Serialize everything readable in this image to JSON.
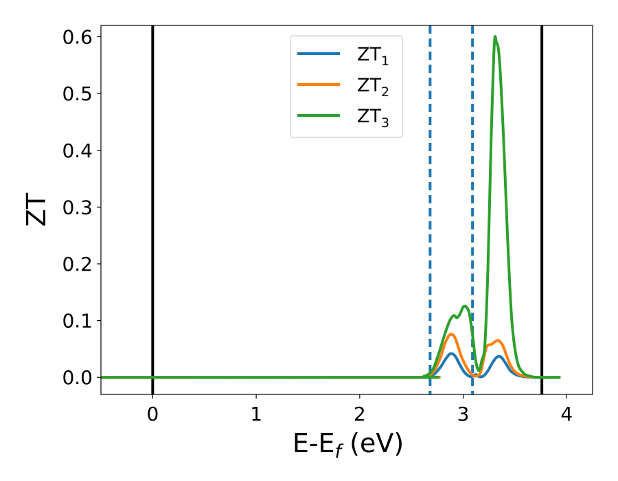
{
  "chart_data": {
    "type": "line",
    "xlabel": {
      "main": "E-E",
      "sub": "f",
      "tail": " (eV)"
    },
    "ylabel": "ZT",
    "xlim": [
      -0.5,
      4.25
    ],
    "ylim": [
      -0.03,
      0.62
    ],
    "x_ticks": [
      {
        "value": 0,
        "label": "0"
      },
      {
        "value": 1,
        "label": "1"
      },
      {
        "value": 2,
        "label": "2"
      },
      {
        "value": 3,
        "label": "3"
      },
      {
        "value": 4,
        "label": "4"
      }
    ],
    "y_ticks": [
      {
        "value": 0.0,
        "label": "0.0"
      },
      {
        "value": 0.1,
        "label": "0.1"
      },
      {
        "value": 0.2,
        "label": "0.2"
      },
      {
        "value": 0.3,
        "label": "0.3"
      },
      {
        "value": 0.4,
        "label": "0.4"
      },
      {
        "value": 0.5,
        "label": "0.5"
      },
      {
        "value": 0.6,
        "label": "0.6"
      }
    ],
    "grid": false,
    "legend_position": "top-center",
    "vertical_lines": [
      {
        "x": 0.0,
        "style": "solid",
        "color": "#000000"
      },
      {
        "x": 3.76,
        "style": "solid",
        "color": "#000000"
      },
      {
        "x": 2.68,
        "style": "dashed",
        "color": "#1f77b4"
      },
      {
        "x": 3.09,
        "style": "dashed",
        "color": "#1f77b4"
      }
    ],
    "series": [
      {
        "name": "ZT",
        "sub": "1",
        "color": "#1f77b4",
        "x": [
          -0.5,
          2.5,
          2.65,
          2.72,
          2.78,
          2.84,
          2.88,
          2.92,
          2.96,
          3.0,
          3.04,
          3.08,
          3.12,
          3.16,
          3.2,
          3.24,
          3.28,
          3.32,
          3.35,
          3.38,
          3.42,
          3.46,
          3.52,
          3.6,
          3.7,
          3.94
        ],
        "y": [
          0.0,
          0.0,
          0.001,
          0.006,
          0.018,
          0.035,
          0.042,
          0.038,
          0.025,
          0.012,
          0.004,
          0.001,
          0.005,
          0.001,
          0.003,
          0.012,
          0.025,
          0.035,
          0.037,
          0.033,
          0.022,
          0.011,
          0.004,
          0.001,
          0.0,
          0.0
        ]
      },
      {
        "name": "ZT",
        "sub": "2",
        "color": "#ff7f0e",
        "x": [
          -0.5,
          2.5,
          2.65,
          2.72,
          2.78,
          2.82,
          2.86,
          2.89,
          2.92,
          2.95,
          2.98,
          3.02,
          3.06,
          3.1,
          3.14,
          3.17,
          3.2,
          3.23,
          3.27,
          3.31,
          3.34,
          3.38,
          3.42,
          3.46,
          3.52,
          3.6,
          3.7,
          3.94
        ],
        "y": [
          0.0,
          0.0,
          0.002,
          0.012,
          0.035,
          0.058,
          0.073,
          0.076,
          0.07,
          0.055,
          0.038,
          0.022,
          0.01,
          0.003,
          0.003,
          0.01,
          0.035,
          0.055,
          0.058,
          0.063,
          0.065,
          0.057,
          0.038,
          0.02,
          0.007,
          0.002,
          0.0,
          0.0
        ]
      },
      {
        "name": "ZT",
        "sub": "3",
        "color": "#2ca02c",
        "x": [
          -0.5,
          2.5,
          2.62,
          2.7,
          2.76,
          2.82,
          2.87,
          2.91,
          2.94,
          2.97,
          3.0,
          3.03,
          3.06,
          3.09,
          3.12,
          3.15,
          3.18,
          3.21,
          3.24,
          3.27,
          3.3,
          3.32,
          3.35,
          3.39,
          3.43,
          3.47,
          3.52,
          3.58,
          3.65,
          3.72,
          3.94
        ],
        "y": [
          0.0,
          0.0,
          0.002,
          0.012,
          0.04,
          0.075,
          0.1,
          0.109,
          0.105,
          0.112,
          0.124,
          0.124,
          0.112,
          0.075,
          0.03,
          0.012,
          0.03,
          0.06,
          0.2,
          0.42,
          0.585,
          0.591,
          0.56,
          0.42,
          0.24,
          0.1,
          0.03,
          0.008,
          0.002,
          0.0,
          0.0
        ]
      }
    ]
  }
}
